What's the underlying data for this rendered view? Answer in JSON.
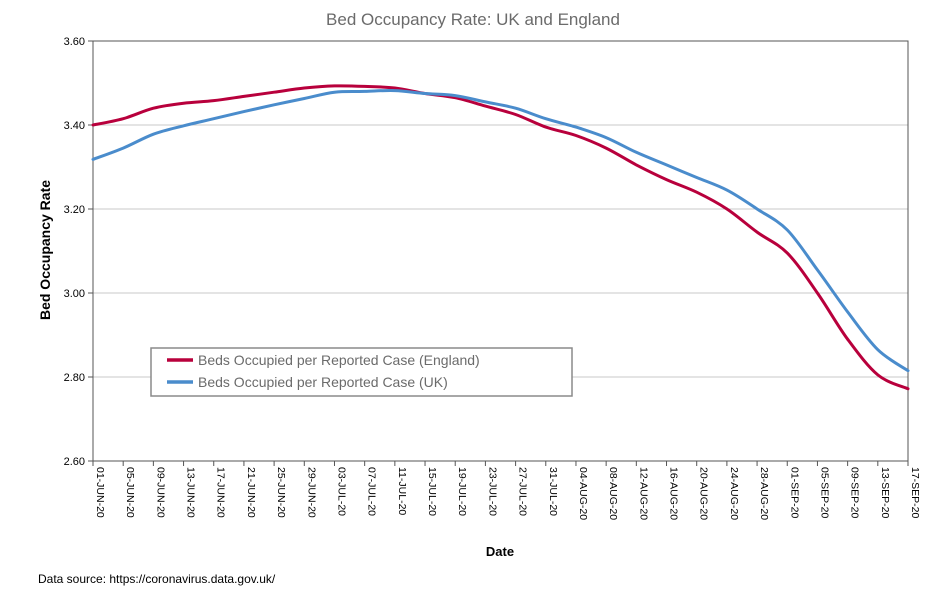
{
  "chart_data": {
    "type": "line",
    "title": "Bed Occupancy Rate: UK and England",
    "xlabel": "Date",
    "ylabel": "Bed Occupancy Rate",
    "ylim": [
      2.6,
      3.6
    ],
    "yticks": [
      "2.60",
      "2.80",
      "3.00",
      "3.20",
      "3.40",
      "3.60"
    ],
    "grid": "horizontal",
    "legend_position": "center-left",
    "x_ticks": [
      "01-JUN-20",
      "05-JUN-20",
      "09-JUN-20",
      "13-JUN-20",
      "17-JUN-20",
      "21-JUN-20",
      "25-JUN-20",
      "29-JUN-20",
      "03-JUL-20",
      "07-JUL-20",
      "11-JUL-20",
      "15-JUL-20",
      "19-JUL-20",
      "23-JUL-20",
      "27-JUL-20",
      "31-JUL-20",
      "04-AUG-20",
      "08-AUG-20",
      "12-AUG-20",
      "16-AUG-20",
      "20-AUG-20",
      "24-AUG-20",
      "28-AUG-20",
      "01-SEP-20",
      "05-SEP-20",
      "09-SEP-20",
      "13-SEP-20",
      "17-SEP-20"
    ],
    "series": [
      {
        "name": "Beds Occupied per Reported Case (England)",
        "color": "#b8003c",
        "points": [
          [
            "01-JUN-20",
            3.4
          ],
          [
            "05-JUN-20",
            3.415
          ],
          [
            "09-JUN-20",
            3.44
          ],
          [
            "13-JUN-20",
            3.452
          ],
          [
            "17-JUN-20",
            3.458
          ],
          [
            "21-JUN-20",
            3.468
          ],
          [
            "25-JUN-20",
            3.478
          ],
          [
            "29-JUN-20",
            3.488
          ],
          [
            "03-JUL-20",
            3.493
          ],
          [
            "07-JUL-20",
            3.492
          ],
          [
            "11-JUL-20",
            3.488
          ],
          [
            "15-JUL-20",
            3.475
          ],
          [
            "19-JUL-20",
            3.465
          ],
          [
            "23-JUL-20",
            3.445
          ],
          [
            "27-JUL-20",
            3.425
          ],
          [
            "31-JUL-20",
            3.395
          ],
          [
            "04-AUG-20",
            3.375
          ],
          [
            "08-AUG-20",
            3.345
          ],
          [
            "12-AUG-20",
            3.305
          ],
          [
            "16-AUG-20",
            3.27
          ],
          [
            "20-AUG-20",
            3.24
          ],
          [
            "24-AUG-20",
            3.2
          ],
          [
            "28-AUG-20",
            3.145
          ],
          [
            "01-SEP-20",
            3.095
          ],
          [
            "05-SEP-20",
            3.0
          ],
          [
            "09-SEP-20",
            2.89
          ],
          [
            "13-SEP-20",
            2.805
          ],
          [
            "17-SEP-20",
            2.772
          ]
        ]
      },
      {
        "name": "Beds Occupied per Reported Case (UK)",
        "color": "#4a8ccc",
        "points": [
          [
            "01-JUN-20",
            3.318
          ],
          [
            "05-JUN-20",
            3.345
          ],
          [
            "09-JUN-20",
            3.378
          ],
          [
            "13-JUN-20",
            3.398
          ],
          [
            "17-JUN-20",
            3.415
          ],
          [
            "21-JUN-20",
            3.432
          ],
          [
            "25-JUN-20",
            3.448
          ],
          [
            "29-JUN-20",
            3.463
          ],
          [
            "03-JUL-20",
            3.478
          ],
          [
            "07-JUL-20",
            3.48
          ],
          [
            "11-JUL-20",
            3.482
          ],
          [
            "15-JUL-20",
            3.475
          ],
          [
            "19-JUL-20",
            3.47
          ],
          [
            "23-JUL-20",
            3.455
          ],
          [
            "27-JUL-20",
            3.44
          ],
          [
            "31-JUL-20",
            3.415
          ],
          [
            "04-AUG-20",
            3.395
          ],
          [
            "08-AUG-20",
            3.37
          ],
          [
            "12-AUG-20",
            3.335
          ],
          [
            "16-AUG-20",
            3.305
          ],
          [
            "20-AUG-20",
            3.275
          ],
          [
            "24-AUG-20",
            3.245
          ],
          [
            "28-AUG-20",
            3.2
          ],
          [
            "01-SEP-20",
            3.15
          ],
          [
            "05-SEP-20",
            3.055
          ],
          [
            "09-SEP-20",
            2.955
          ],
          [
            "13-SEP-20",
            2.865
          ],
          [
            "17-SEP-20",
            2.815
          ]
        ]
      }
    ]
  },
  "footer": {
    "source_text": "Data source:  https://coronavirus.data.gov.uk/"
  }
}
